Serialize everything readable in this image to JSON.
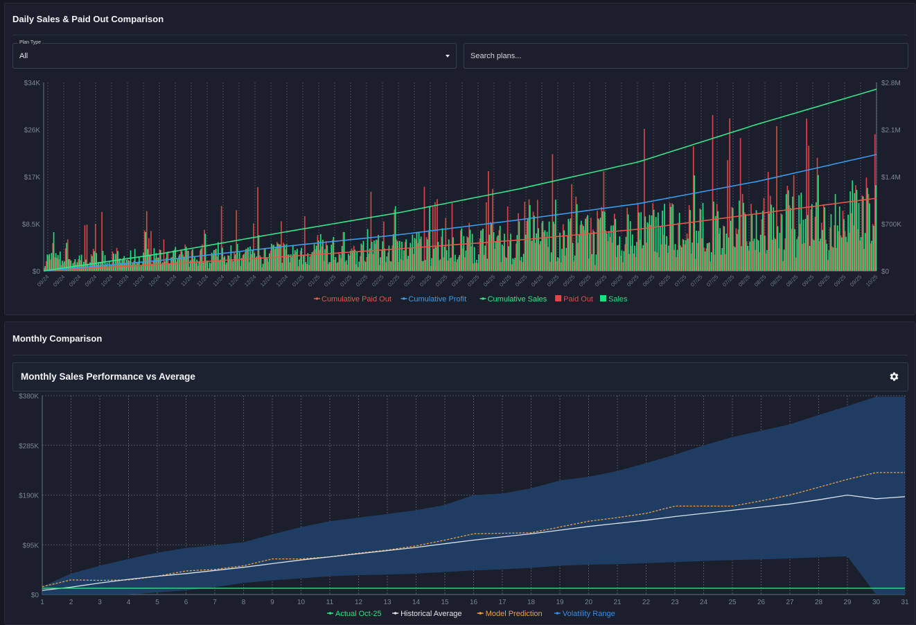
{
  "top_panel": {
    "title": "Daily Sales & Paid Out Comparison",
    "plan_type": {
      "label": "Plan Type",
      "value": "All"
    },
    "search": {
      "placeholder": "Search plans..."
    }
  },
  "bottom_panel": {
    "title": "Monthly Comparison",
    "subpanel_title": "Monthly Sales Performance vs Average",
    "settings_icon": "gear-icon"
  },
  "colors": {
    "sales": "#1fe07f",
    "paid_out": "#e04848",
    "cumulative_sales": "#35e68a",
    "cumulative_profit": "#3a9cf0",
    "cumulative_paid_out": "#e05a4a",
    "actual": "#2be383",
    "historical": "#dfe3ea",
    "model": "#f0a040",
    "volatility": "#3a8ae0",
    "volatility_fill": "#1f4068"
  },
  "chart_data": [
    {
      "type": "bar",
      "title": "Daily Sales & Paid Out Comparison",
      "x_tick_labels": [
        "09/24",
        "09/24",
        "09/24",
        "09/24",
        "10/24",
        "10/24",
        "10/24",
        "10/24",
        "11/24",
        "11/24",
        "11/24",
        "11/24",
        "12/24",
        "12/24",
        "12/24",
        "12/24",
        "01/25",
        "01/25",
        "01/25",
        "01/25",
        "02/25",
        "02/25",
        "02/25",
        "02/25",
        "03/25",
        "03/25",
        "03/25",
        "03/25",
        "04/25",
        "04/25",
        "04/25",
        "04/25",
        "05/25",
        "05/25",
        "05/25",
        "05/25",
        "06/25",
        "06/25",
        "06/25",
        "06/25",
        "07/25",
        "07/25",
        "07/25",
        "07/25",
        "08/25",
        "08/25",
        "08/25",
        "08/25",
        "09/25",
        "09/25",
        "09/25",
        "09/25",
        "10/25"
      ],
      "y_left": {
        "ticks": [
          "$0",
          "$8.5K",
          "$17K",
          "$26K",
          "$34K"
        ],
        "range": [
          0,
          34000
        ]
      },
      "y_right": {
        "ticks": [
          "$0",
          "$700K",
          "$1.4M",
          "$2.1M",
          "$2.8M"
        ],
        "range": [
          0,
          2800000
        ]
      },
      "grid": "vertical dashed",
      "legend_position": "bottom",
      "series": [
        {
          "name": "Cumulative Paid Out",
          "type": "line",
          "axis": "right",
          "values_approx": [
            0,
            100000,
            210000,
            330000,
            460000,
            620000,
            850000,
            1080000
          ]
        },
        {
          "name": "Cumulative Profit",
          "type": "line",
          "axis": "right",
          "values_approx": [
            0,
            160000,
            360000,
            540000,
            760000,
            1000000,
            1330000,
            1730000
          ]
        },
        {
          "name": "Cumulative Sales",
          "type": "line",
          "axis": "right",
          "values_approx": [
            0,
            260000,
            570000,
            870000,
            1220000,
            1620000,
            2180000,
            2700000
          ]
        },
        {
          "name": "Paid Out",
          "type": "bar",
          "axis": "left",
          "range_approx": [
            0,
            34000
          ]
        },
        {
          "name": "Sales",
          "type": "bar",
          "axis": "left",
          "range_approx": [
            0,
            22000
          ]
        }
      ]
    },
    {
      "type": "line",
      "title": "Monthly Sales Performance vs Average",
      "x": [
        1,
        2,
        3,
        4,
        5,
        6,
        7,
        8,
        9,
        10,
        11,
        12,
        13,
        14,
        15,
        16,
        17,
        18,
        19,
        20,
        21,
        22,
        23,
        24,
        25,
        26,
        27,
        28,
        29,
        30,
        31
      ],
      "y_ticks": [
        "$0",
        "$95K",
        "$190K",
        "$285K",
        "$380K"
      ],
      "ylim": [
        0,
        380000
      ],
      "grid": "dashed",
      "legend_position": "bottom",
      "series": [
        {
          "name": "Actual Oct-25",
          "values": [
            12000,
            12000,
            12000,
            12000,
            12000,
            12000,
            12000,
            12000,
            12000,
            12000,
            12000,
            12000,
            12000,
            12000,
            12000,
            12000,
            12000,
            12000,
            12000,
            12000,
            12000,
            12000,
            12000,
            12000,
            12000,
            12000,
            12000,
            12000,
            12000,
            12000,
            12000
          ]
        },
        {
          "name": "Historical Average",
          "values": [
            8000,
            14000,
            22000,
            29000,
            35000,
            40000,
            46000,
            52000,
            59000,
            66000,
            72000,
            78000,
            84000,
            90000,
            97000,
            104000,
            110000,
            116000,
            123000,
            130000,
            136000,
            142000,
            149000,
            155000,
            161000,
            167000,
            173000,
            181000,
            190000,
            183000,
            187000
          ]
        },
        {
          "name": "Model Prediction",
          "values": [
            15000,
            28000,
            27000,
            28000,
            35000,
            45000,
            48000,
            55000,
            68000,
            68000,
            72000,
            79000,
            85000,
            93000,
            104000,
            116000,
            117000,
            118000,
            129000,
            140000,
            147000,
            155000,
            169000,
            169000,
            169000,
            179000,
            190000,
            205000,
            220000,
            233000,
            233000
          ]
        },
        {
          "name": "Volatility Range",
          "upper": [
            15000,
            40000,
            55000,
            68000,
            80000,
            89000,
            94000,
            100000,
            115000,
            129000,
            140000,
            147000,
            154000,
            161000,
            171000,
            190000,
            193000,
            203000,
            218000,
            225000,
            236000,
            251000,
            267000,
            285000,
            301000,
            313000,
            325000,
            343000,
            360000,
            378000,
            378000
          ],
          "lower": [
            0,
            0,
            0,
            0,
            4000,
            8000,
            14000,
            22000,
            27000,
            31000,
            35000,
            37000,
            38000,
            40000,
            43000,
            46000,
            48000,
            51000,
            55000,
            57000,
            58000,
            60000,
            62000,
            64000,
            66000,
            67000,
            69000,
            71000,
            73000,
            0,
            0
          ]
        }
      ]
    }
  ]
}
